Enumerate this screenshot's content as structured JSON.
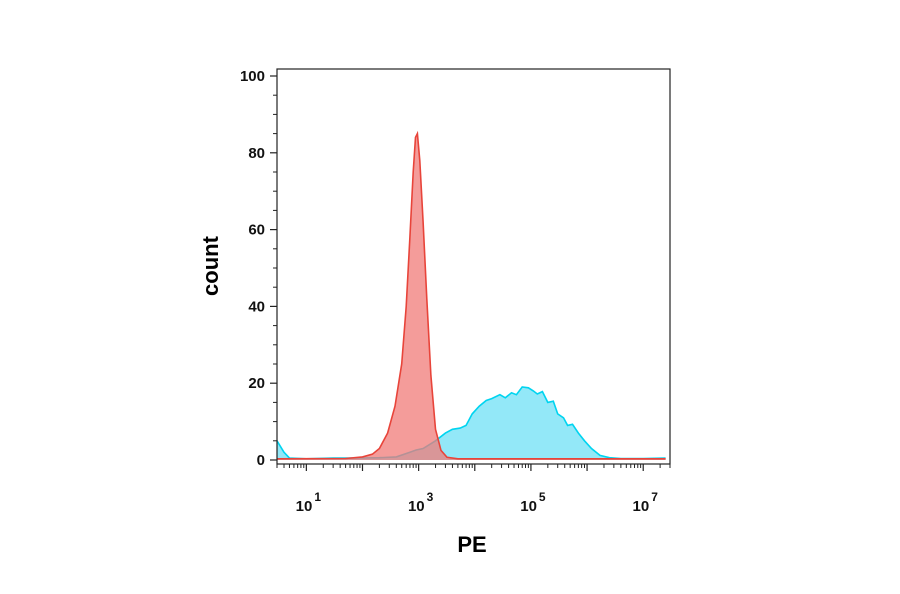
{
  "chart_data": {
    "type": "area",
    "xlabel": "PE",
    "ylabel": "count",
    "x_scale": "log10",
    "xlim": [
      3,
      30000000
    ],
    "ylim": [
      0,
      100
    ],
    "y_ticks": [
      0,
      20,
      40,
      60,
      80,
      100
    ],
    "y_tick_labels": [
      "0",
      "20",
      "40",
      "60",
      "80",
      "100"
    ],
    "x_ticks": [
      {
        "value": 10,
        "base": "10",
        "exp": "1"
      },
      {
        "value": 1000,
        "base": "10",
        "exp": "3"
      },
      {
        "value": 100000,
        "base": "10",
        "exp": "5"
      },
      {
        "value": 10000000,
        "base": "10",
        "exp": "7"
      }
    ],
    "grid": false,
    "legend": "none",
    "series": [
      {
        "color": "#00d4f0",
        "fill": "#6fe0f5",
        "points": [
          [
            3,
            5
          ],
          [
            4,
            2
          ],
          [
            5,
            0.5
          ],
          [
            10,
            0.3
          ],
          [
            30,
            0.5
          ],
          [
            80,
            0.5
          ],
          [
            200,
            0.6
          ],
          [
            400,
            0.8
          ],
          [
            700,
            2.0
          ],
          [
            900,
            2.6
          ],
          [
            1200,
            3.0
          ],
          [
            2000,
            5.0
          ],
          [
            3000,
            7.0
          ],
          [
            4000,
            8.0
          ],
          [
            5500,
            8.3
          ],
          [
            7000,
            9.0
          ],
          [
            9000,
            12.0
          ],
          [
            12000,
            14.0
          ],
          [
            16000,
            15.5
          ],
          [
            20000,
            16.0
          ],
          [
            28000,
            17.0
          ],
          [
            35000,
            16.2
          ],
          [
            45000,
            17.5
          ],
          [
            55000,
            17.0
          ],
          [
            70000,
            19.0
          ],
          [
            90000,
            18.8
          ],
          [
            110000,
            18.0
          ],
          [
            130000,
            17.2
          ],
          [
            160000,
            17.8
          ],
          [
            200000,
            15.0
          ],
          [
            250000,
            15.3
          ],
          [
            300000,
            12.0
          ],
          [
            380000,
            11.0
          ],
          [
            450000,
            9.0
          ],
          [
            550000,
            9.3
          ],
          [
            700000,
            7.0
          ],
          [
            900000,
            5.0
          ],
          [
            1200000,
            3.0
          ],
          [
            1700000,
            1.2
          ],
          [
            2500000,
            0.6
          ],
          [
            4000000,
            0.4
          ],
          [
            10000000,
            0.4
          ],
          [
            25000000,
            0.5
          ]
        ]
      },
      {
        "color": "#e8443a",
        "fill": "#f07b78",
        "points": [
          [
            3,
            0.3
          ],
          [
            50,
            0.4
          ],
          [
            100,
            0.8
          ],
          [
            150,
            1.5
          ],
          [
            200,
            3.0
          ],
          [
            280,
            7.0
          ],
          [
            380,
            14.0
          ],
          [
            500,
            25.0
          ],
          [
            600,
            40.0
          ],
          [
            700,
            58.0
          ],
          [
            800,
            75.0
          ],
          [
            880,
            84.0
          ],
          [
            950,
            85.0
          ],
          [
            1050,
            78.0
          ],
          [
            1200,
            62.0
          ],
          [
            1400,
            42.0
          ],
          [
            1650,
            22.0
          ],
          [
            2000,
            8.0
          ],
          [
            2500,
            2.5
          ],
          [
            3200,
            0.7
          ],
          [
            5000,
            0.3
          ],
          [
            25000000,
            0.3
          ]
        ]
      }
    ]
  }
}
